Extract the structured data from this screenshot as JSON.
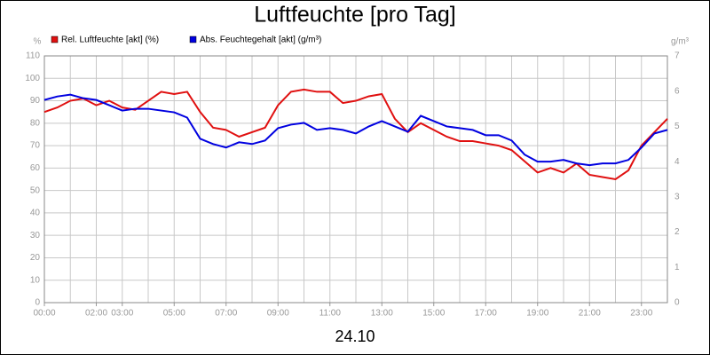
{
  "chart_data": {
    "type": "line",
    "title": "Luftfeuchte [pro Tag]",
    "xlabel": "24.10",
    "ylabel": "%",
    "y2label": "g/m³",
    "x": [
      0,
      0.5,
      1,
      1.5,
      2,
      2.5,
      3,
      3.5,
      4,
      4.5,
      5,
      5.5,
      6,
      6.5,
      7,
      7.5,
      8,
      8.5,
      9,
      9.5,
      10,
      10.5,
      11,
      11.5,
      12,
      12.5,
      13,
      13.5,
      14,
      14.5,
      15,
      15.5,
      16,
      16.5,
      17,
      17.5,
      18,
      18.5,
      19,
      19.5,
      20,
      20.5,
      21,
      21.5,
      22,
      22.5,
      23,
      23.5,
      24
    ],
    "series": [
      {
        "name": "Rel. Luftfeuchte [akt] (%)",
        "color": "#e01010",
        "axis": "y",
        "values": [
          85,
          87,
          90,
          91,
          88,
          90,
          87,
          86,
          90,
          94,
          93,
          94,
          85,
          78,
          77,
          74,
          76,
          78,
          88,
          94,
          95,
          94,
          94,
          89,
          90,
          92,
          93,
          82,
          76,
          80,
          77,
          74,
          72,
          72,
          71,
          70,
          68,
          63,
          58,
          60,
          58,
          62,
          57,
          56,
          55,
          59,
          70,
          76,
          82
        ]
      },
      {
        "name": "Abs. Feuchtegehalt [akt] (g/m³)",
        "color": "#0000e0",
        "axis": "y2",
        "values": [
          5.75,
          5.85,
          5.9,
          5.8,
          5.75,
          5.6,
          5.45,
          5.5,
          5.5,
          5.45,
          5.4,
          5.25,
          4.65,
          4.5,
          4.4,
          4.55,
          4.5,
          4.6,
          4.95,
          5.05,
          5.1,
          4.9,
          4.95,
          4.9,
          4.8,
          5.0,
          5.15,
          5.0,
          4.85,
          5.3,
          5.15,
          5.0,
          4.95,
          4.9,
          4.75,
          4.75,
          4.6,
          4.2,
          4.0,
          4.0,
          4.05,
          3.95,
          3.9,
          3.95,
          3.95,
          4.05,
          4.4,
          4.8,
          4.9
        ]
      }
    ],
    "xlim": [
      0,
      24
    ],
    "xticks": [
      {
        "value": 0,
        "label": "00:00"
      },
      {
        "value": 2,
        "label": "02:00"
      },
      {
        "value": 3,
        "label": "03:00"
      },
      {
        "value": 5,
        "label": "05:00"
      },
      {
        "value": 7,
        "label": "07:00"
      },
      {
        "value": 9,
        "label": "09:00"
      },
      {
        "value": 11,
        "label": "11:00"
      },
      {
        "value": 13,
        "label": "13:00"
      },
      {
        "value": 15,
        "label": "15:00"
      },
      {
        "value": 17,
        "label": "17:00"
      },
      {
        "value": 19,
        "label": "19:00"
      },
      {
        "value": 21,
        "label": "21:00"
      },
      {
        "value": 23,
        "label": "23:00"
      }
    ],
    "xgrid": [
      1,
      2,
      3,
      4,
      5,
      6,
      7,
      8,
      9,
      10,
      11,
      12,
      13,
      14,
      15,
      16,
      17,
      18,
      19,
      20,
      21,
      22,
      23
    ],
    "ylim": [
      0,
      110
    ],
    "yticks": [
      0,
      10,
      20,
      30,
      40,
      50,
      60,
      70,
      80,
      90,
      100,
      110
    ],
    "y2lim": [
      0,
      7
    ],
    "y2ticks": [
      0,
      1,
      2,
      3,
      4,
      5,
      6,
      7
    ],
    "grid": true
  }
}
